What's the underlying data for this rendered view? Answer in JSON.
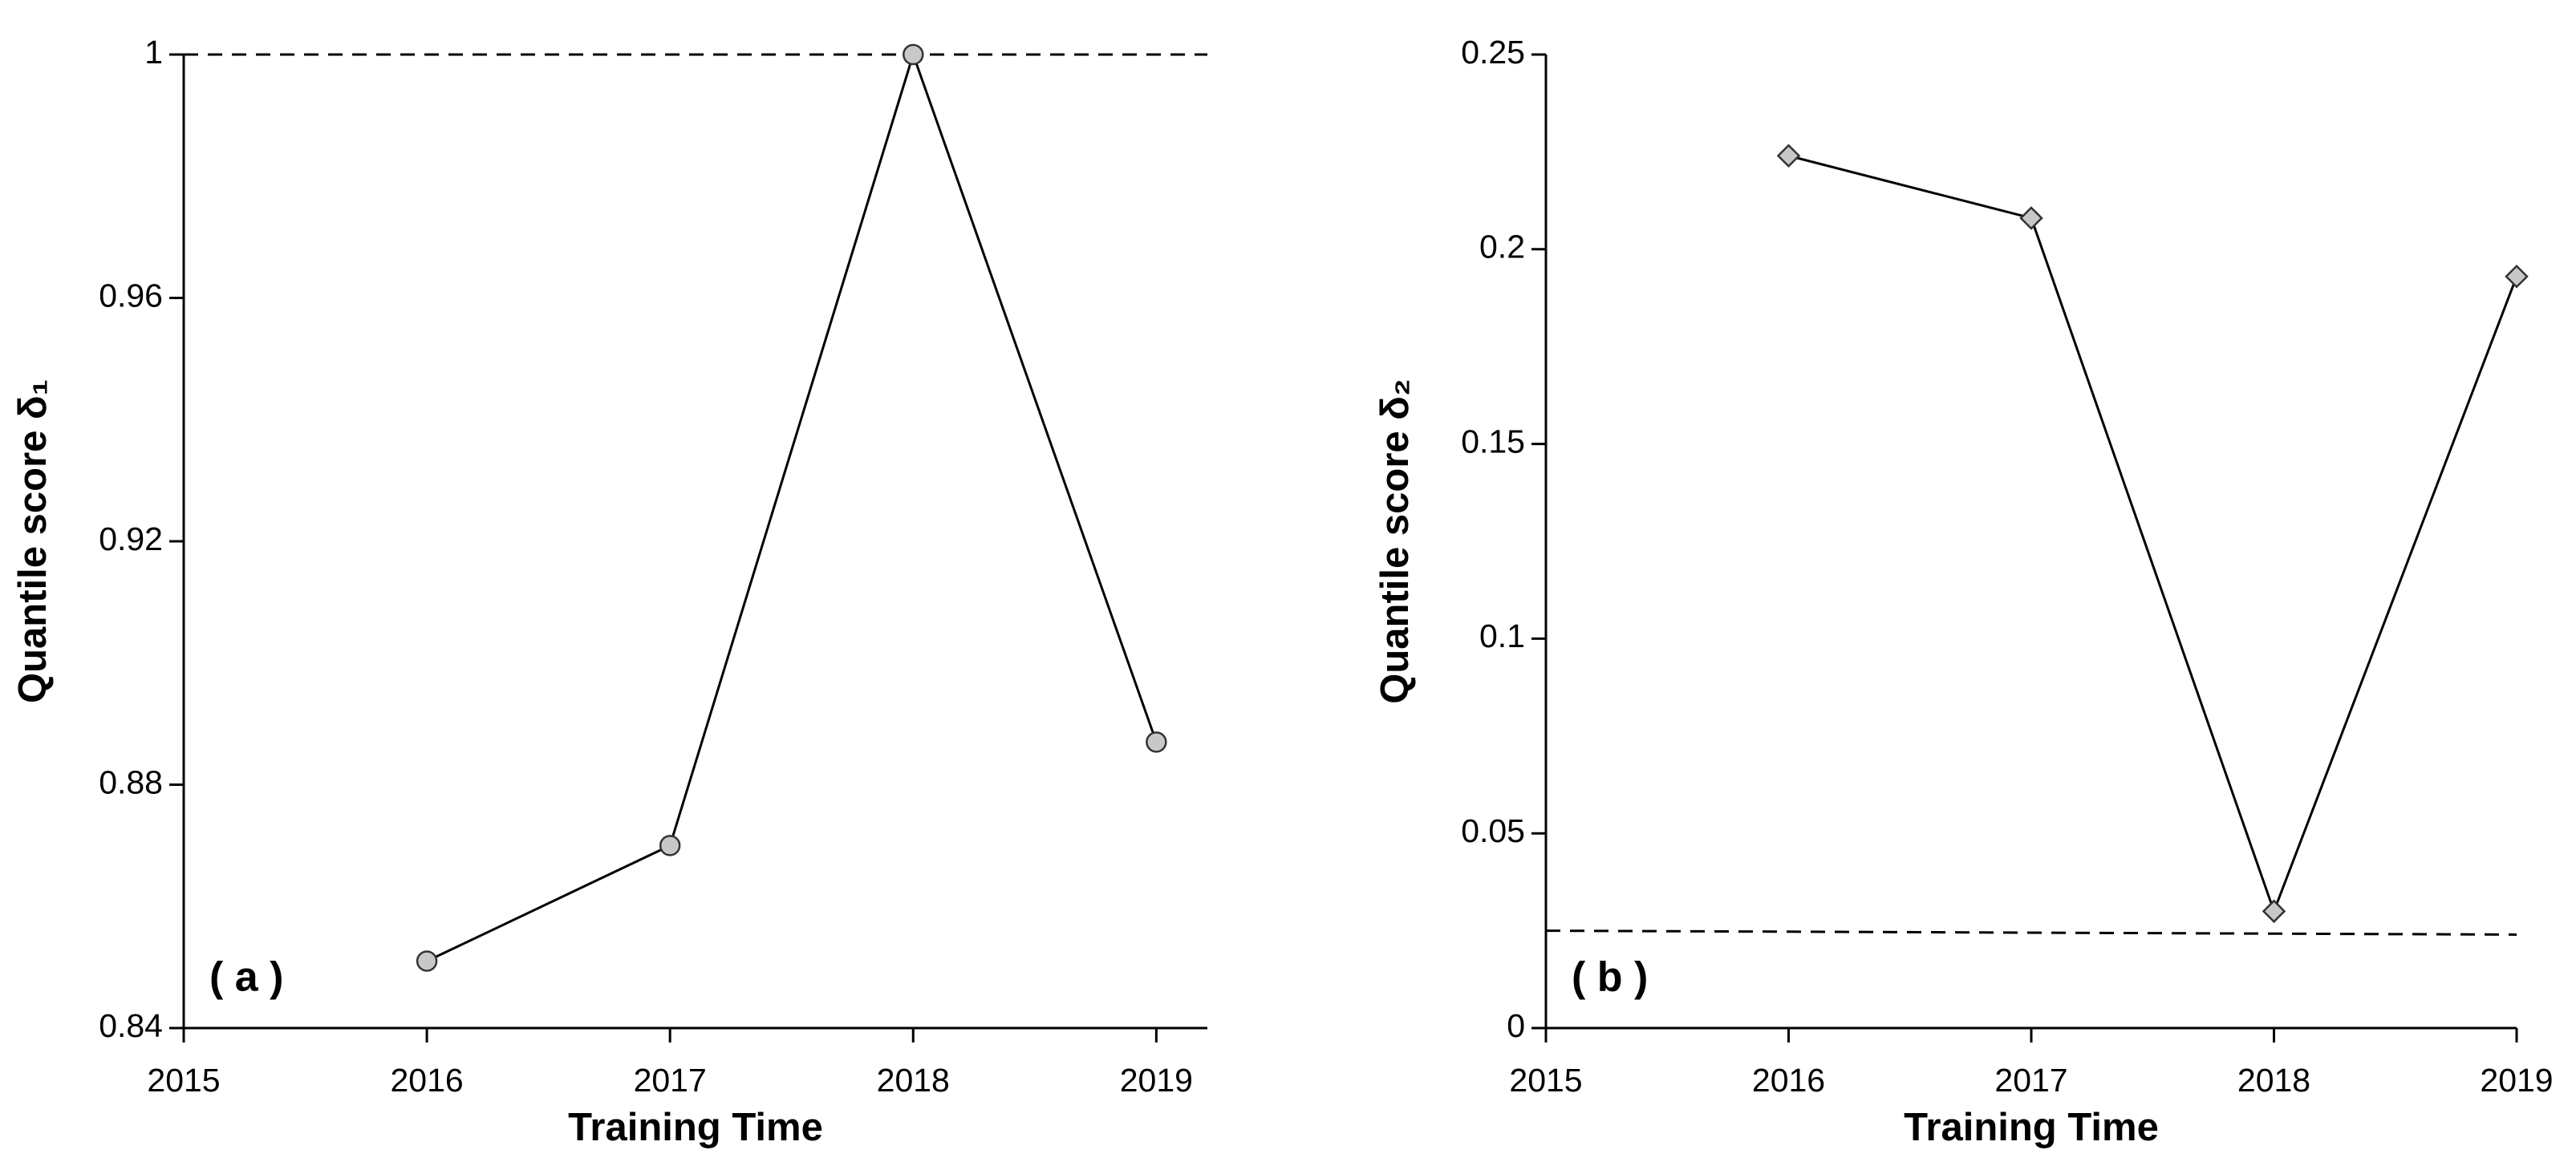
{
  "chart_data": [
    {
      "type": "line",
      "panel_label": "( a )",
      "xlabel": "Training Time",
      "ylabel": "Quantile score δ₁",
      "x": [
        2016,
        2017,
        2018,
        2019
      ],
      "series": [
        {
          "color": "#c8c8c8",
          "marker": "circle",
          "values": [
            0.851,
            0.87,
            1.0,
            0.887
          ]
        }
      ],
      "xlim": [
        2015,
        2019.21
      ],
      "xticks": [
        2015,
        2016,
        2017,
        2018,
        2019
      ],
      "ylim": [
        0.84,
        1
      ],
      "yticks": [
        0.84,
        0.88,
        0.92,
        0.96,
        1
      ],
      "reference_line": {
        "x": [
          2015,
          2019.21
        ],
        "y": [
          1,
          1
        ]
      }
    },
    {
      "type": "line",
      "panel_label": "( b )",
      "xlabel": "Training Time",
      "ylabel": "Quantile score δ₂",
      "x": [
        2016,
        2017,
        2018,
        2019
      ],
      "series": [
        {
          "color": "#c8c8c8",
          "marker": "diamond",
          "values": [
            0.224,
            0.208,
            0.03,
            0.193
          ]
        }
      ],
      "xlim": [
        2015,
        2019
      ],
      "xticks": [
        2015,
        2016,
        2017,
        2018,
        2019
      ],
      "ylim": [
        0,
        0.25
      ],
      "yticks": [
        0,
        0.05,
        0.1,
        0.15,
        0.2,
        0.25
      ],
      "reference_line": {
        "x": [
          2015,
          2019
        ],
        "y": [
          0.025,
          0.024
        ]
      }
    }
  ]
}
